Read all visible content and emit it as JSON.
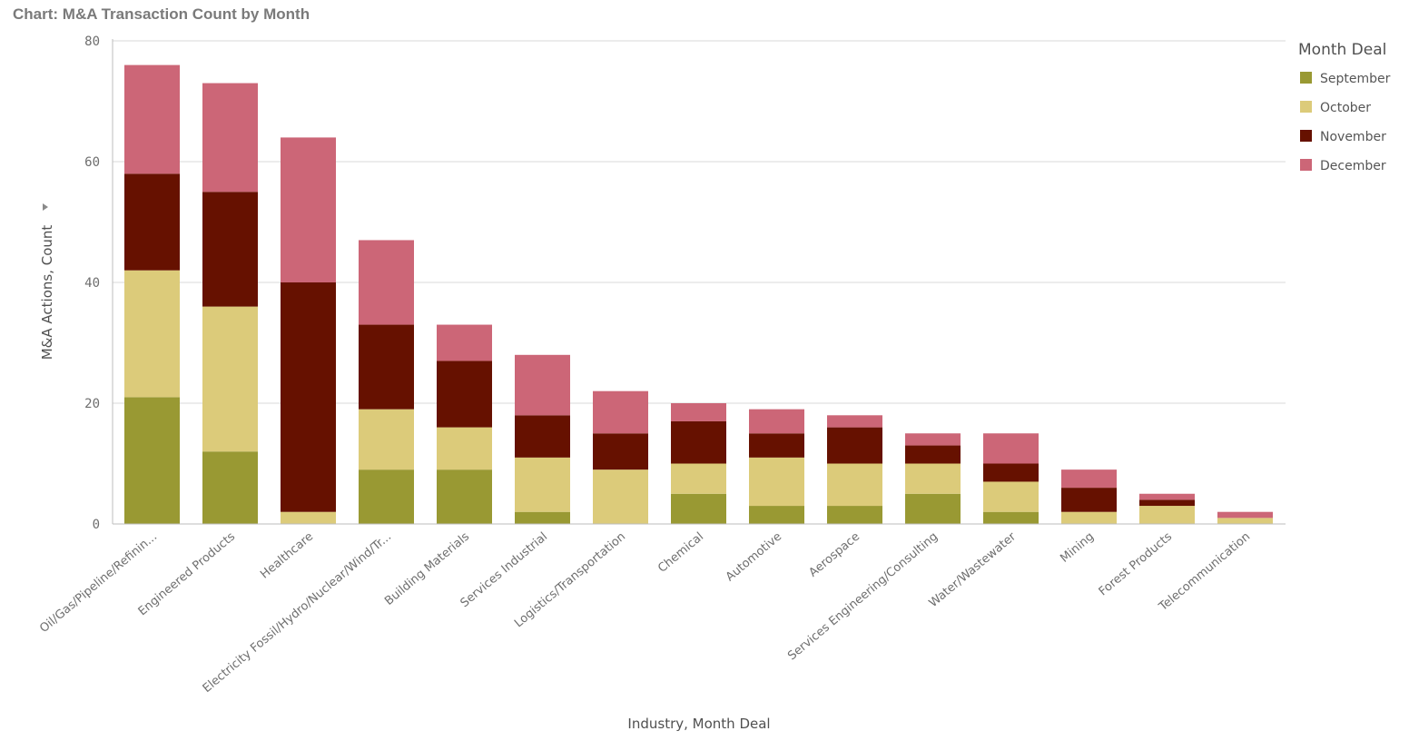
{
  "title": "Chart: M&A Transaction Count by Month",
  "chart_data": {
    "type": "bar",
    "stacked": true,
    "xlabel": "Industry,  Month Deal",
    "ylabel": "M&A Actions, Count",
    "ylim": [
      0,
      80
    ],
    "yticks": [
      0,
      20,
      40,
      60,
      80
    ],
    "grid": true,
    "legend_title": "Month Deal",
    "legend_position": "right",
    "categories": [
      "Oil/Gas/Pipeline/Refinin...",
      "Engineered Products",
      "Healthcare",
      "Electricity Fossil/Hydro/Nuclear/Wind/Tr...",
      "Building Materials",
      "Services Industrial",
      "Logistics/Transportation",
      "Chemical",
      "Automotive",
      "Aerospace",
      "Services Engineering/Consulting",
      "Water/Wastewater",
      "Mining",
      "Forest Products",
      "Telecommunication"
    ],
    "series": [
      {
        "name": "September",
        "color": "#999933",
        "values": [
          21,
          12,
          0,
          9,
          9,
          2,
          0,
          5,
          3,
          3,
          5,
          2,
          0,
          0,
          0
        ]
      },
      {
        "name": "October",
        "color": "#dccb7a",
        "values": [
          21,
          24,
          2,
          10,
          7,
          9,
          9,
          5,
          8,
          7,
          5,
          5,
          2,
          3,
          1
        ]
      },
      {
        "name": "November",
        "color": "#661100",
        "values": [
          16,
          19,
          38,
          14,
          11,
          7,
          6,
          7,
          4,
          6,
          3,
          3,
          4,
          1,
          0
        ]
      },
      {
        "name": "December",
        "color": "#cc6677",
        "values": [
          18,
          18,
          24,
          14,
          6,
          10,
          7,
          3,
          4,
          2,
          2,
          5,
          3,
          1,
          1
        ]
      }
    ]
  }
}
